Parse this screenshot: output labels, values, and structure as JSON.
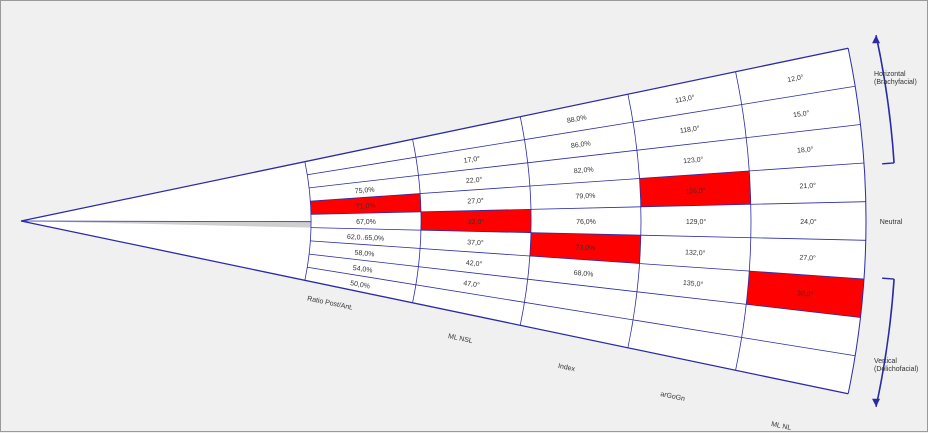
{
  "colors": {
    "line": "#2a2aa8",
    "highlight": "#ff0000",
    "wedge_bg": "#ffffff",
    "canvas_bg": "#f0f0f0",
    "neutral_band": "#cfcfcf"
  },
  "zones": {
    "horizontal": "Horizontal\n(Brachyfacial)",
    "neutral": "Neutral",
    "vertical": "Vertical\n(Dolichofacial)"
  },
  "columns": [
    {
      "name": "Ratio Post/Ant.",
      "cells": [
        "",
        "",
        "75,0%",
        "71,0%",
        "67,0%",
        "62,0..65,0%",
        "58,0%",
        "54,0%",
        "50,0%"
      ],
      "highlight": 3
    },
    {
      "name": "ML NSL",
      "cells": [
        "",
        "17,0°",
        "22,0°",
        "27,0°",
        "32,0°",
        "37,0°",
        "42,0°",
        "47,0°",
        ""
      ],
      "highlight": 4
    },
    {
      "name": "Index",
      "cells": [
        "88,0%",
        "86,0%",
        "82,0%",
        "79,0%",
        "76,0%",
        "73,0%",
        "68,0%",
        "",
        ""
      ],
      "highlight": 5
    },
    {
      "name": "arGoGn",
      "cells": [
        "113,0°",
        "118,0°",
        "123,0°",
        "126,0°",
        "129,0°",
        "132,0°",
        "135,0°",
        "",
        ""
      ],
      "highlight": 3
    },
    {
      "name": "ML NL",
      "cells": [
        "12,0°",
        "15,0°",
        "18,0°",
        "21,0°",
        "24,0°",
        "27,0°",
        "30,0°",
        "",
        ""
      ],
      "highlight": 6
    }
  ]
}
